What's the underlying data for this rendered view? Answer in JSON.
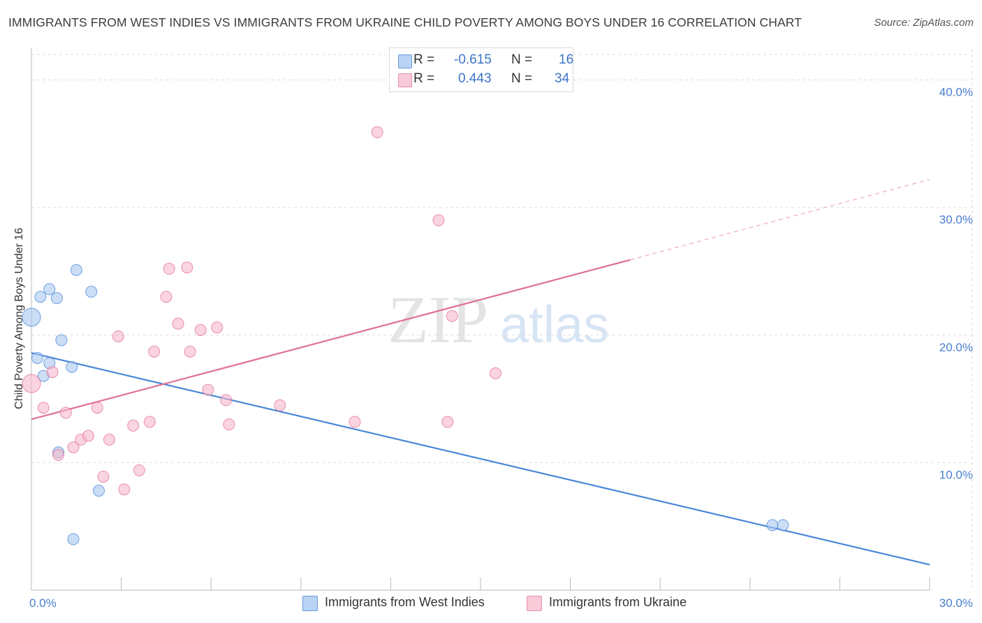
{
  "title": "IMMIGRANTS FROM WEST INDIES VS IMMIGRANTS FROM UKRAINE CHILD POVERTY AMONG BOYS UNDER 16 CORRELATION CHART",
  "source": "Source: ZipAtlas.com",
  "watermark": {
    "zip": "ZIP",
    "atlas": "atlas"
  },
  "legend": {
    "r_label": "R =",
    "n_label": "N =",
    "rows": [
      {
        "r": "-0.615",
        "n": "16",
        "color": "#a9c8f0"
      },
      {
        "r": "0.443",
        "n": "34",
        "color": "#f6b8cb"
      }
    ]
  },
  "chart_data": {
    "type": "scatter",
    "title": "IMMIGRANTS FROM WEST INDIES VS IMMIGRANTS FROM UKRAINE CHILD POVERTY AMONG BOYS UNDER 16 CORRELATION CHART",
    "xlabel": "",
    "ylabel": "Child Poverty Among Boys Under 16",
    "xlim": [
      0,
      30
    ],
    "ylim": [
      0,
      42
    ],
    "x_tick_labels": [
      "0.0%",
      "30.0%"
    ],
    "y_ticks": [
      10,
      20,
      30,
      40
    ],
    "y_tick_labels": [
      "10.0%",
      "20.0%",
      "30.0%",
      "40.0%"
    ],
    "grid": true,
    "series": [
      {
        "name": "Immigrants from West Indies",
        "color": "#4a86d8",
        "fill": "#a9c8f0",
        "points": [
          {
            "x": 0.0,
            "y": 21.4,
            "big": true
          },
          {
            "x": 0.2,
            "y": 18.2
          },
          {
            "x": 0.3,
            "y": 23.0
          },
          {
            "x": 0.4,
            "y": 16.8
          },
          {
            "x": 0.6,
            "y": 23.6
          },
          {
            "x": 0.6,
            "y": 17.8
          },
          {
            "x": 0.85,
            "y": 22.9
          },
          {
            "x": 1.0,
            "y": 19.6
          },
          {
            "x": 0.9,
            "y": 10.8
          },
          {
            "x": 1.35,
            "y": 17.5
          },
          {
            "x": 1.5,
            "y": 25.1
          },
          {
            "x": 2.0,
            "y": 23.4
          },
          {
            "x": 2.25,
            "y": 7.8
          },
          {
            "x": 1.4,
            "y": 4.0
          },
          {
            "x": 24.75,
            "y": 5.1
          },
          {
            "x": 25.1,
            "y": 5.1
          }
        ],
        "trend": {
          "x0": 0,
          "y0": 18.6,
          "x1": 30,
          "y1": 2.0
        }
      },
      {
        "name": "Immigrants from Ukraine",
        "color": "#e07097",
        "fill": "#f6b8cb",
        "points": [
          {
            "x": 0.0,
            "y": 16.2,
            "big": true
          },
          {
            "x": 0.4,
            "y": 14.3
          },
          {
            "x": 0.7,
            "y": 17.1
          },
          {
            "x": 0.9,
            "y": 10.6
          },
          {
            "x": 1.15,
            "y": 13.9
          },
          {
            "x": 1.4,
            "y": 11.2
          },
          {
            "x": 1.65,
            "y": 11.8
          },
          {
            "x": 1.9,
            "y": 12.1
          },
          {
            "x": 2.2,
            "y": 14.3
          },
          {
            "x": 2.4,
            "y": 8.9
          },
          {
            "x": 2.6,
            "y": 11.8
          },
          {
            "x": 2.9,
            "y": 19.9
          },
          {
            "x": 3.1,
            "y": 7.9
          },
          {
            "x": 3.4,
            "y": 12.9
          },
          {
            "x": 3.6,
            "y": 9.4
          },
          {
            "x": 3.95,
            "y": 13.2
          },
          {
            "x": 4.1,
            "y": 18.7
          },
          {
            "x": 4.5,
            "y": 23.0
          },
          {
            "x": 4.6,
            "y": 25.2
          },
          {
            "x": 4.9,
            "y": 20.9
          },
          {
            "x": 5.2,
            "y": 25.3
          },
          {
            "x": 5.3,
            "y": 18.7
          },
          {
            "x": 5.65,
            "y": 20.4
          },
          {
            "x": 5.9,
            "y": 15.7
          },
          {
            "x": 6.2,
            "y": 20.6
          },
          {
            "x": 6.5,
            "y": 14.9
          },
          {
            "x": 6.6,
            "y": 13.0
          },
          {
            "x": 8.3,
            "y": 14.5
          },
          {
            "x": 10.8,
            "y": 13.2
          },
          {
            "x": 11.55,
            "y": 35.9
          },
          {
            "x": 13.6,
            "y": 29.0
          },
          {
            "x": 13.9,
            "y": 13.2
          },
          {
            "x": 14.05,
            "y": 21.5
          },
          {
            "x": 15.5,
            "y": 17.0
          }
        ],
        "trend": {
          "x0": 0,
          "y0": 13.4,
          "x1": 20,
          "y1": 25.9,
          "dashed_to": {
            "x": 30,
            "y": 32.2
          }
        }
      }
    ]
  }
}
